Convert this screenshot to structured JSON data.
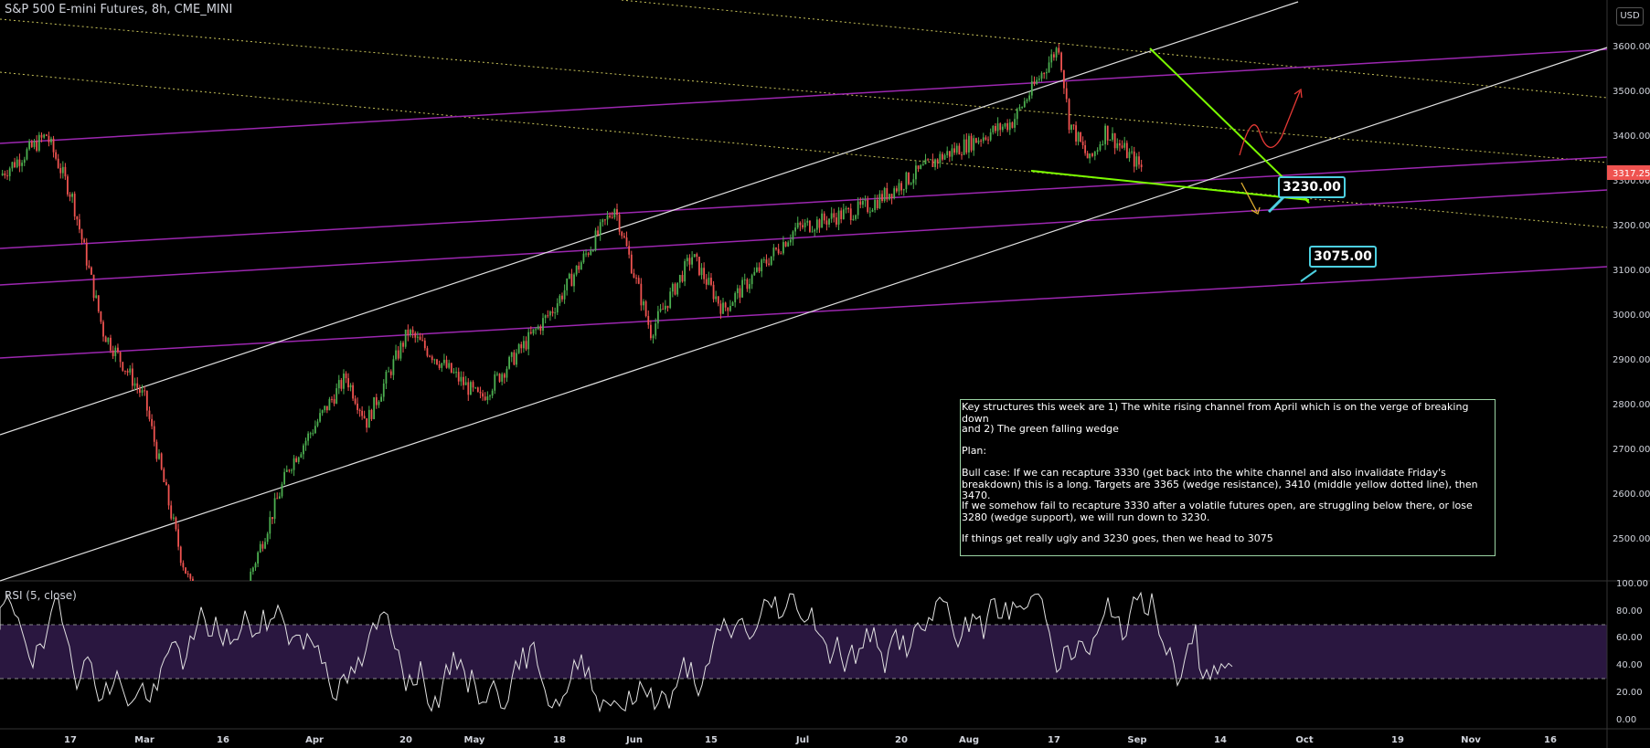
{
  "header": {
    "title": "S&P 500 E-mini Futures, 8h, CME_MINI",
    "currency_button": "USD"
  },
  "price_axis": {
    "ticks": [
      "3600.00",
      "3500.00",
      "3400.00",
      "3300.00",
      "3200.00",
      "3100.00",
      "3000.00",
      "2900.00",
      "2800.00",
      "2700.00",
      "2600.00",
      "2500.00"
    ],
    "current_price": "3317.25",
    "current_price_color": "#ef5350"
  },
  "time_axis": {
    "labels": [
      "17",
      "Mar",
      "16",
      "Apr",
      "20",
      "May",
      "18",
      "Jun",
      "15",
      "Jul",
      "20",
      "Aug",
      "17",
      "Sep",
      "14",
      "Oct",
      "19",
      "Nov",
      "16"
    ]
  },
  "rsi": {
    "label": "RSI (5, close)",
    "ticks": [
      "100.00",
      "80.00",
      "60.00",
      "40.00",
      "20.00",
      "0.00"
    ],
    "upper_band": 70,
    "lower_band": 30,
    "band_color": "#2a1740"
  },
  "annotations": {
    "target_1": "3230.00",
    "target_2": "3075.00",
    "note_lines": [
      "Key structures this week are 1) The white rising channel from April which is on the verge of breaking down",
      "and 2) The green falling wedge",
      "Plan:",
      "Bull case: If we can recapture 3330 (get back into the white channel and also invalidate Friday's breakdown) this is a long. Targets are 3365 (wedge resistance), 3410 (middle yellow dotted line), then 3470.",
      "If we somehow fail to recapture 3330 after a volatile futures open, are struggling below there, or lose 3280 (wedge support), we will run down to 3230.",
      "If things get really ugly and 3230 goes, then we head to 3075"
    ]
  },
  "chart_data": {
    "type": "candlestick",
    "symbol": "S&P 500 E-mini Futures",
    "interval": "8h",
    "exchange": "CME_MINI",
    "ylim": [
      2430,
      3640
    ],
    "y_unit": "USD",
    "up_color": "#4caf50",
    "down_color": "#ef5350",
    "approx_price_path": [
      {
        "x": "Feb 10",
        "y": 3300
      },
      {
        "x": "Feb 19",
        "y": 3390
      },
      {
        "x": "Feb 24",
        "y": 3250
      },
      {
        "x": "Mar 1",
        "y": 2950
      },
      {
        "x": "Mar 9",
        "y": 2800
      },
      {
        "x": "Mar 16",
        "y": 2450
      },
      {
        "x": "Mar 23",
        "y": 2200
      },
      {
        "x": "Apr 6",
        "y": 2650
      },
      {
        "x": "Apr 17",
        "y": 2850
      },
      {
        "x": "Apr 21",
        "y": 2750
      },
      {
        "x": "Apr 29",
        "y": 2950
      },
      {
        "x": "May 13",
        "y": 2800
      },
      {
        "x": "May 27",
        "y": 3000
      },
      {
        "x": "Jun 8",
        "y": 3230
      },
      {
        "x": "Jun 15",
        "y": 2950
      },
      {
        "x": "Jun 23",
        "y": 3120
      },
      {
        "x": "Jun 29",
        "y": 3000
      },
      {
        "x": "Jul 13",
        "y": 3180
      },
      {
        "x": "Jul 27",
        "y": 3230
      },
      {
        "x": "Aug 10",
        "y": 3340
      },
      {
        "x": "Aug 24",
        "y": 3420
      },
      {
        "x": "Sep 2",
        "y": 3590
      },
      {
        "x": "Sep 4",
        "y": 3420
      },
      {
        "x": "Sep 8",
        "y": 3330
      },
      {
        "x": "Sep 11",
        "y": 3400
      },
      {
        "x": "Sep 18",
        "y": 3317.25
      }
    ],
    "horizontal_targets": [
      3230,
      3075
    ],
    "rsi_series": {
      "name": "RSI (5, close)",
      "range": [
        0,
        100
      ],
      "bands": [
        30,
        70
      ]
    }
  }
}
